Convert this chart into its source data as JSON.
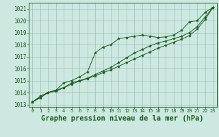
{
  "background_color": "#cde8e0",
  "plot_bg_color": "#cde8e0",
  "grid_color": "#9bbfba",
  "line_color": "#1a5c1a",
  "title": "Graphe pression niveau de la mer (hPa)",
  "xlim": [
    -0.5,
    23.5
  ],
  "ylim": [
    1012.8,
    1021.5
  ],
  "yticks": [
    1013,
    1014,
    1015,
    1016,
    1017,
    1018,
    1019,
    1020,
    1021
  ],
  "xticks": [
    0,
    1,
    2,
    3,
    4,
    5,
    6,
    7,
    8,
    9,
    10,
    11,
    12,
    13,
    14,
    15,
    16,
    17,
    18,
    19,
    20,
    21,
    22,
    23
  ],
  "series1": [
    1013.2,
    1013.7,
    1014.0,
    1014.2,
    1014.8,
    1015.0,
    1015.3,
    1015.7,
    1017.3,
    1017.8,
    1018.0,
    1018.5,
    1018.6,
    1018.7,
    1018.8,
    1018.7,
    1018.6,
    1018.65,
    1018.8,
    1019.2,
    1019.9,
    1020.0,
    1020.7,
    1021.1
  ],
  "series2": [
    1013.2,
    1013.6,
    1014.0,
    1014.1,
    1014.4,
    1014.8,
    1015.0,
    1015.2,
    1015.5,
    1015.8,
    1016.1,
    1016.5,
    1016.9,
    1017.3,
    1017.6,
    1017.9,
    1018.15,
    1018.3,
    1018.5,
    1018.7,
    1019.0,
    1019.5,
    1020.3,
    1021.1
  ],
  "series3": [
    1013.2,
    1013.55,
    1014.0,
    1014.2,
    1014.4,
    1014.7,
    1014.95,
    1015.15,
    1015.4,
    1015.65,
    1015.9,
    1016.2,
    1016.5,
    1016.8,
    1017.1,
    1017.4,
    1017.7,
    1017.95,
    1018.2,
    1018.45,
    1018.75,
    1019.3,
    1020.1,
    1021.1
  ]
}
